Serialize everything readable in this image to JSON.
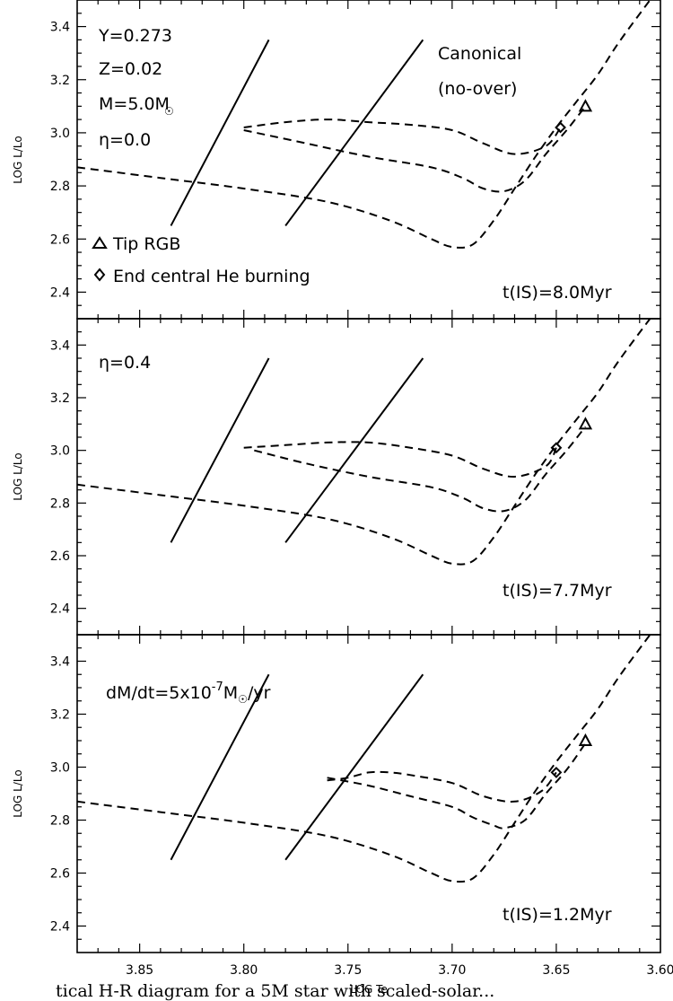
{
  "chart_data": [
    {
      "type": "line",
      "xlabel": "",
      "ylabel": "LOG L/Lo",
      "xlim": [
        3.88,
        3.6
      ],
      "ylim": [
        2.3,
        3.5
      ],
      "yticks": [
        "2.4",
        "2.6",
        "2.8",
        "3.0",
        "3.2",
        "3.4"
      ],
      "annotations": [
        "Y=0.273",
        "Z=0.02",
        "M=5.0M",
        "η=0.0",
        "Canonical",
        "(no-over)",
        "t(IS)=8.0Myr"
      ],
      "legend": {
        "placement": "bottom-left",
        "entries": [
          "Tip RGB",
          "End central He burning"
        ]
      },
      "instability_strip": [
        {
          "x": [
            3.835,
            3.788
          ],
          "y": [
            2.65,
            3.35
          ]
        },
        {
          "x": [
            3.78,
            3.714
          ],
          "y": [
            2.65,
            3.35
          ]
        }
      ],
      "tracks": [
        {
          "x": [
            3.88,
            3.84,
            3.8,
            3.76,
            3.73,
            3.71,
            3.7,
            3.69,
            3.68,
            3.67,
            3.66,
            3.65,
            3.64,
            3.63,
            3.62,
            3.605
          ],
          "y": [
            2.87,
            2.83,
            2.79,
            2.74,
            2.67,
            2.6,
            2.57,
            2.58,
            2.67,
            2.79,
            2.91,
            3.02,
            3.12,
            3.22,
            3.34,
            3.5
          ]
        },
        {
          "x": [
            3.8,
            3.77,
            3.74,
            3.71,
            3.695,
            3.685,
            3.675,
            3.665,
            3.655,
            3.645,
            3.636
          ],
          "y": [
            3.01,
            2.96,
            2.91,
            2.87,
            2.83,
            2.79,
            2.78,
            2.82,
            2.92,
            3.01,
            3.1
          ]
        },
        {
          "x": [
            3.8,
            3.78,
            3.76,
            3.74,
            3.72,
            3.7,
            3.685,
            3.67,
            3.655,
            3.648
          ],
          "y": [
            3.02,
            3.04,
            3.05,
            3.04,
            3.03,
            3.01,
            2.96,
            2.92,
            2.95,
            3.02
          ]
        }
      ],
      "tip_rgb": {
        "x": 3.636,
        "y": 3.1
      },
      "end_he_burning": {
        "x": 3.648,
        "y": 3.02
      }
    },
    {
      "type": "line",
      "xlabel": "",
      "ylabel": "LOG L/Lo",
      "xlim": [
        3.88,
        3.6
      ],
      "ylim": [
        2.3,
        3.5
      ],
      "yticks": [
        "2.4",
        "2.6",
        "2.8",
        "3.0",
        "3.2",
        "3.4"
      ],
      "annotations": [
        "η=0.4",
        "t(IS)=7.7Myr"
      ],
      "instability_strip": [
        {
          "x": [
            3.835,
            3.788
          ],
          "y": [
            2.65,
            3.35
          ]
        },
        {
          "x": [
            3.78,
            3.714
          ],
          "y": [
            2.65,
            3.35
          ]
        }
      ],
      "tracks": [
        {
          "x": [
            3.88,
            3.84,
            3.8,
            3.76,
            3.73,
            3.71,
            3.7,
            3.69,
            3.68,
            3.67,
            3.66,
            3.65,
            3.64,
            3.63,
            3.62,
            3.605
          ],
          "y": [
            2.87,
            2.83,
            2.79,
            2.74,
            2.67,
            2.6,
            2.57,
            2.58,
            2.67,
            2.79,
            2.91,
            3.02,
            3.12,
            3.22,
            3.34,
            3.5
          ]
        },
        {
          "x": [
            3.795,
            3.77,
            3.74,
            3.71,
            3.695,
            3.685,
            3.675,
            3.665,
            3.655,
            3.645,
            3.636
          ],
          "y": [
            3.0,
            2.95,
            2.9,
            2.86,
            2.82,
            2.78,
            2.77,
            2.81,
            2.91,
            3.0,
            3.09
          ]
        },
        {
          "x": [
            3.8,
            3.78,
            3.76,
            3.74,
            3.72,
            3.7,
            3.685,
            3.67,
            3.655,
            3.65
          ],
          "y": [
            3.01,
            3.02,
            3.03,
            3.03,
            3.01,
            2.98,
            2.93,
            2.9,
            2.94,
            3.01
          ]
        }
      ],
      "tip_rgb": {
        "x": 3.636,
        "y": 3.1
      },
      "end_he_burning": {
        "x": 3.65,
        "y": 3.01
      }
    },
    {
      "type": "line",
      "xlabel": "LOG Te",
      "ylabel": "LOG L/Lo",
      "xlim": [
        3.88,
        3.6
      ],
      "ylim": [
        2.3,
        3.5
      ],
      "yticks": [
        "2.4",
        "2.6",
        "2.8",
        "3.0",
        "3.2",
        "3.4"
      ],
      "xticks": [
        "3.85",
        "3.80",
        "3.75",
        "3.70",
        "3.65",
        "3.60"
      ],
      "annotations": [
        "dM/dt=5x10",
        "-7",
        "M",
        "/yr",
        "t(IS)=1.2Myr"
      ],
      "instability_strip": [
        {
          "x": [
            3.835,
            3.788
          ],
          "y": [
            2.65,
            3.35
          ]
        },
        {
          "x": [
            3.78,
            3.714
          ],
          "y": [
            2.65,
            3.35
          ]
        }
      ],
      "tracks": [
        {
          "x": [
            3.88,
            3.84,
            3.8,
            3.76,
            3.73,
            3.71,
            3.7,
            3.69,
            3.68,
            3.67,
            3.66,
            3.65,
            3.64,
            3.63,
            3.62,
            3.605
          ],
          "y": [
            2.87,
            2.83,
            2.79,
            2.74,
            2.67,
            2.6,
            2.57,
            2.58,
            2.67,
            2.79,
            2.91,
            3.02,
            3.12,
            3.22,
            3.34,
            3.5
          ]
        },
        {
          "x": [
            3.76,
            3.74,
            3.72,
            3.7,
            3.69,
            3.68,
            3.675,
            3.665,
            3.655,
            3.645,
            3.636
          ],
          "y": [
            2.96,
            2.93,
            2.89,
            2.85,
            2.81,
            2.78,
            2.77,
            2.8,
            2.9,
            2.99,
            3.09
          ]
        },
        {
          "x": [
            3.76,
            3.75,
            3.74,
            3.73,
            3.72,
            3.7,
            3.685,
            3.67,
            3.657,
            3.65
          ],
          "y": [
            2.95,
            2.96,
            2.98,
            2.98,
            2.97,
            2.94,
            2.89,
            2.87,
            2.91,
            2.98
          ]
        }
      ],
      "tip_rgb": {
        "x": 3.636,
        "y": 3.1
      },
      "end_he_burning": {
        "x": 3.65,
        "y": 2.98
      }
    }
  ],
  "caption": "tical H-R diagram for a 5M star with scaled-solar..."
}
